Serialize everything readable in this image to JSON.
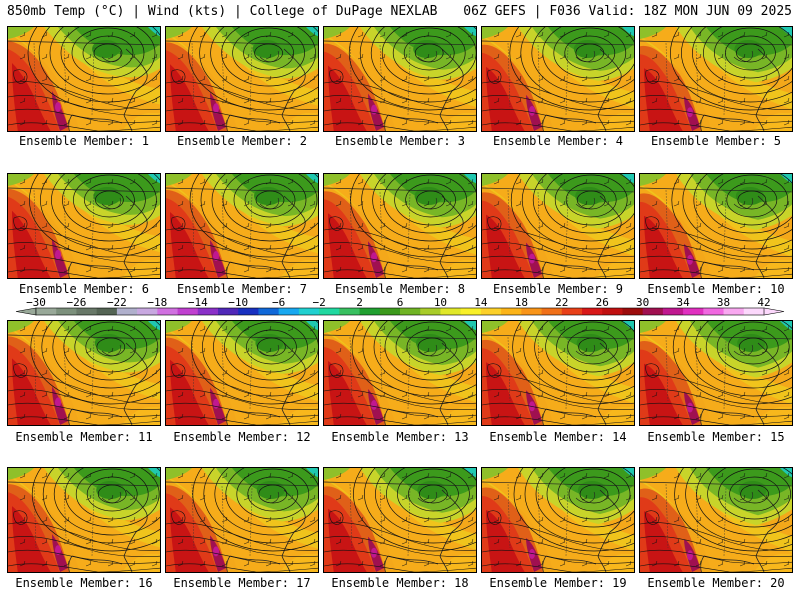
{
  "header": {
    "left": "850mb Temp (°C) | Wind (kts) | College of DuPage NEXLAB",
    "right": "06Z GEFS | F036 Valid: 18Z MON JUN 09 2025"
  },
  "panels": [
    {
      "label": "Ensemble Member: 1"
    },
    {
      "label": "Ensemble Member: 2"
    },
    {
      "label": "Ensemble Member: 3"
    },
    {
      "label": "Ensemble Member: 4"
    },
    {
      "label": "Ensemble Member: 5"
    },
    {
      "label": "Ensemble Member: 6"
    },
    {
      "label": "Ensemble Member: 7"
    },
    {
      "label": "Ensemble Member: 8"
    },
    {
      "label": "Ensemble Member: 9"
    },
    {
      "label": "Ensemble Member: 10"
    },
    {
      "label": "Ensemble Member: 11"
    },
    {
      "label": "Ensemble Member: 12"
    },
    {
      "label": "Ensemble Member: 13"
    },
    {
      "label": "Ensemble Member: 14"
    },
    {
      "label": "Ensemble Member: 15"
    },
    {
      "label": "Ensemble Member: 16"
    },
    {
      "label": "Ensemble Member: 17"
    },
    {
      "label": "Ensemble Member: 18"
    },
    {
      "label": "Ensemble Member: 19"
    },
    {
      "label": "Ensemble Member: 20"
    }
  ],
  "colorbar": {
    "ticks": [
      "−30",
      "−26",
      "−22",
      "−18",
      "−14",
      "−10",
      "−6",
      "−2",
      "2",
      "6",
      "10",
      "14",
      "18",
      "22",
      "26",
      "30",
      "34",
      "38",
      "42"
    ],
    "colors": [
      "#98a898",
      "#7c907c",
      "#687868",
      "#546454",
      "#b0b0cc",
      "#c8a8e0",
      "#d070e0",
      "#c040d0",
      "#8a30c8",
      "#5028b8",
      "#1830c0",
      "#1068d8",
      "#18a8f0",
      "#20d0d0",
      "#20d8a0",
      "#38c060",
      "#20a030",
      "#3c9a1c",
      "#70b424",
      "#a8cc28",
      "#e0e828",
      "#f8f028",
      "#fcd028",
      "#fcb418",
      "#f89418",
      "#f07018",
      "#e84018",
      "#d81818",
      "#c01010",
      "#9c0c0c",
      "#a01050",
      "#c01890",
      "#e030c0",
      "#f068e0",
      "#f8a8f0",
      "#fcd8fc"
    ]
  }
}
